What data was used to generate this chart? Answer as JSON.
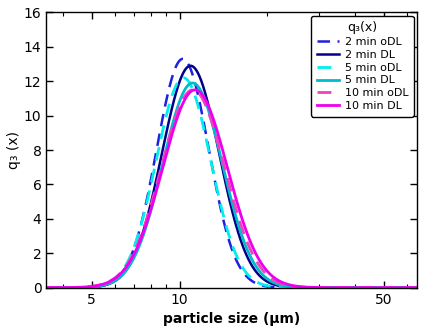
{
  "title": "",
  "xlabel": "particle size (μm)",
  "ylabel": "q₃ (x)",
  "xlim": [
    3.5,
    65
  ],
  "ylim": [
    0,
    16
  ],
  "yticks": [
    0,
    2,
    4,
    6,
    8,
    10,
    12,
    14,
    16
  ],
  "xticks": [
    5,
    10,
    50
  ],
  "legend_title": "q₃(x)",
  "curves": [
    {
      "label": "2 min oDL",
      "color": "#2020DD",
      "linestyle": "dashed",
      "linewidth": 1.8,
      "mu_log": 2.37,
      "sigma_log": 0.205,
      "peak": 13.3
    },
    {
      "label": "2 min DL",
      "color": "#00008B",
      "linestyle": "solid",
      "linewidth": 1.8,
      "mu_log": 2.44,
      "sigma_log": 0.225,
      "peak": 12.9
    },
    {
      "label": "5 min oDL",
      "color": "#00EEEE",
      "linestyle": "dashed",
      "linewidth": 2.0,
      "mu_log": 2.38,
      "sigma_log": 0.215,
      "peak": 12.2
    },
    {
      "label": "5 min DL",
      "color": "#00BBCC",
      "linestyle": "solid",
      "linewidth": 2.0,
      "mu_log": 2.46,
      "sigma_log": 0.235,
      "peak": 11.9
    },
    {
      "label": "10 min oDL",
      "color": "#EE44BB",
      "linestyle": "dashed",
      "linewidth": 2.0,
      "mu_log": 2.47,
      "sigma_log": 0.25,
      "peak": 11.5
    },
    {
      "label": "10 min DL",
      "color": "#EE00EE",
      "linestyle": "solid",
      "linewidth": 2.0,
      "mu_log": 2.49,
      "sigma_log": 0.255,
      "peak": 11.5
    }
  ],
  "background_color": "#ffffff"
}
